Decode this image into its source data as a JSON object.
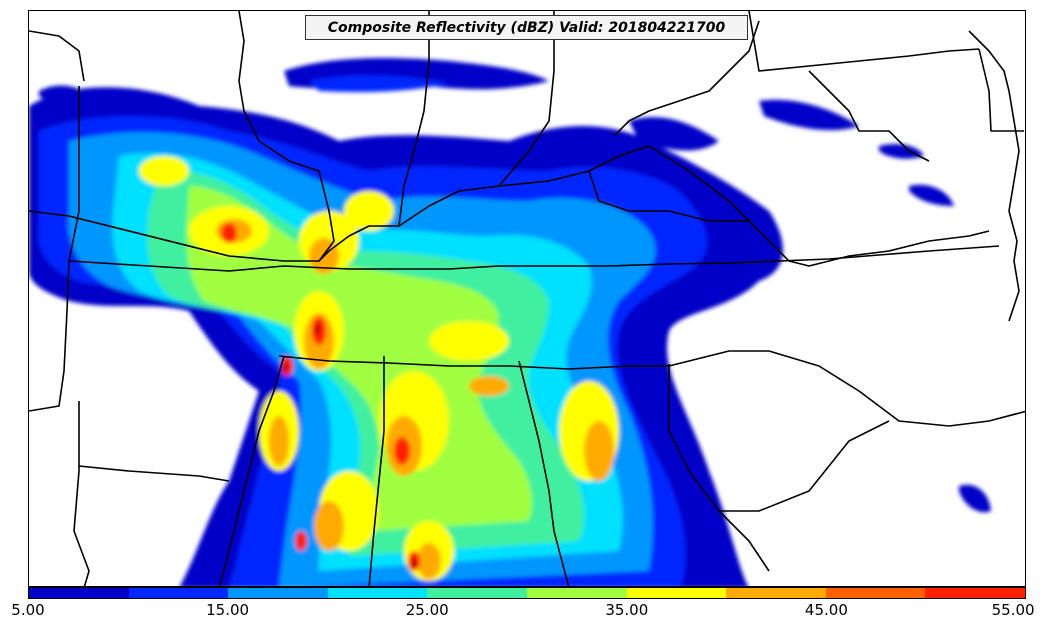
{
  "title": "Composite Reflectivity (dBZ) Valid: 201804221700",
  "colorbar": {
    "colors": [
      "#0000c8",
      "#0028ff",
      "#0096ff",
      "#00e0ff",
      "#40f0a0",
      "#a0ff40",
      "#ffff00",
      "#ffaa00",
      "#ff6000",
      "#ff2000",
      "#c80000"
    ],
    "tick_labels": [
      "5.00",
      "15.00",
      "25.00",
      "35.00",
      "45.00",
      "55.00"
    ]
  },
  "colors": {
    "map_background": "#ffffff",
    "border_lines": "#000000"
  }
}
